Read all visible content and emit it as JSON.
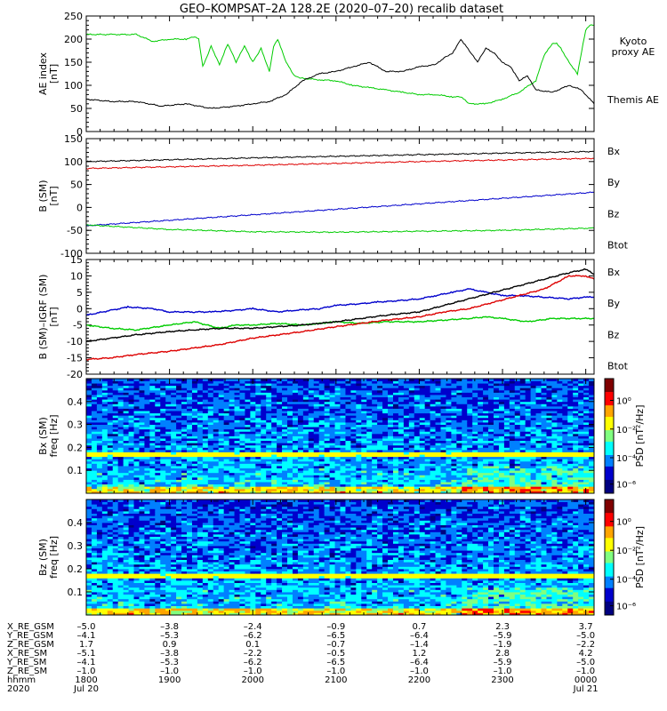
{
  "title": "GEO–KOMPSAT–2A 128.2E (2020–07–20) recalib dataset",
  "chart_data": [
    {
      "type": "line",
      "id": "ae",
      "ylabel": [
        "AE index",
        "[nT]"
      ],
      "ylim": [
        0,
        250
      ],
      "yticks": [
        0,
        50,
        100,
        150,
        200,
        250
      ],
      "xlim": [
        18.0,
        24.1
      ],
      "series": [
        {
          "name": "Kyoto proxy AE",
          "legend": [
            "Kyoto",
            "proxy AE"
          ],
          "color": "#00cc00",
          "x": [
            18.0,
            18.3,
            18.6,
            18.8,
            19.0,
            19.2,
            19.3,
            19.35,
            19.4,
            19.5,
            19.6,
            19.7,
            19.8,
            19.9,
            20.0,
            20.1,
            20.2,
            20.25,
            20.3,
            20.4,
            20.5,
            20.6,
            20.8,
            21.0,
            21.2,
            21.4,
            21.6,
            21.8,
            22.0,
            22.2,
            22.4,
            22.5,
            22.6,
            22.8,
            23.0,
            23.2,
            23.4,
            23.5,
            23.6,
            23.65,
            23.7,
            23.8,
            23.9,
            24.0,
            24.05,
            24.1
          ],
          "y": [
            210,
            210,
            210,
            195,
            200,
            200,
            205,
            200,
            140,
            185,
            145,
            190,
            150,
            185,
            150,
            180,
            130,
            185,
            200,
            150,
            120,
            115,
            112,
            110,
            100,
            95,
            90,
            85,
            80,
            80,
            75,
            75,
            60,
            60,
            70,
            85,
            110,
            165,
            190,
            190,
            180,
            150,
            125,
            220,
            230,
            230
          ]
        },
        {
          "name": "Themis AE",
          "legend": [
            "Themis AE"
          ],
          "color": "#000000",
          "x": [
            18.0,
            18.3,
            18.6,
            18.9,
            19.2,
            19.5,
            19.8,
            20.0,
            20.2,
            20.4,
            20.6,
            20.8,
            21.0,
            21.2,
            21.4,
            21.6,
            21.8,
            22.0,
            22.2,
            22.3,
            22.4,
            22.5,
            22.6,
            22.7,
            22.8,
            22.9,
            23.0,
            23.1,
            23.2,
            23.3,
            23.4,
            23.6,
            23.8,
            23.95,
            24.0,
            24.1
          ],
          "y": [
            70,
            65,
            65,
            55,
            60,
            50,
            55,
            60,
            65,
            80,
            110,
            125,
            130,
            140,
            150,
            130,
            130,
            140,
            145,
            160,
            170,
            200,
            175,
            150,
            180,
            170,
            150,
            140,
            110,
            120,
            90,
            85,
            100,
            90,
            80,
            60
          ]
        }
      ]
    },
    {
      "type": "line",
      "id": "b",
      "ylabel": [
        "B (SM)",
        "[nT]"
      ],
      "ylim": [
        -100,
        150
      ],
      "yticks": [
        -100,
        -50,
        0,
        50,
        100,
        150
      ],
      "xlim": [
        18.0,
        24.1
      ],
      "series": [
        {
          "name": "Bx",
          "color": "#0000cc",
          "x": [
            18.0,
            24.1
          ],
          "y": [
            -40,
            33
          ]
        },
        {
          "name": "By",
          "color": "#00cc00",
          "x": [
            18.0,
            19.0,
            20.0,
            21.0,
            22.0,
            23.0,
            24.1
          ],
          "y": [
            -38,
            -48,
            -53,
            -54,
            -52,
            -50,
            -45
          ]
        },
        {
          "name": "Bz",
          "color": "#dd0000",
          "x": [
            18.0,
            20.0,
            22.0,
            24.1
          ],
          "y": [
            85,
            92,
            100,
            107
          ]
        },
        {
          "name": "Btot",
          "color": "#000000",
          "x": [
            18.0,
            20.0,
            22.0,
            24.1
          ],
          "y": [
            100,
            108,
            115,
            122
          ]
        }
      ]
    },
    {
      "type": "line",
      "id": "db",
      "ylabel": [
        "B (SM)–IGRF (SM)",
        "[nT]"
      ],
      "ylim": [
        -20,
        15
      ],
      "yticks": [
        -20,
        -15,
        -10,
        -5,
        0,
        5,
        10,
        15
      ],
      "xlim": [
        18.0,
        24.1
      ],
      "series": [
        {
          "name": "Bx",
          "color": "#0000cc",
          "x": [
            18.0,
            18.3,
            18.5,
            18.8,
            19.0,
            19.3,
            19.5,
            19.8,
            20.0,
            20.3,
            20.5,
            20.8,
            21.0,
            21.3,
            21.5,
            21.8,
            22.0,
            22.2,
            22.4,
            22.6,
            22.8,
            23.0,
            23.2,
            23.5,
            23.8,
            24.0,
            24.1
          ],
          "y": [
            -2,
            -0.5,
            0.5,
            0,
            -1,
            -1,
            -1,
            -0.5,
            0,
            -1,
            -0.5,
            0,
            1,
            1.5,
            2,
            2.5,
            3,
            4,
            5,
            6,
            5,
            4,
            4,
            3.5,
            3,
            3.5,
            3.5
          ]
        },
        {
          "name": "By",
          "color": "#00cc00",
          "x": [
            18.0,
            18.3,
            18.6,
            19.0,
            19.3,
            19.6,
            19.8,
            20.0,
            20.3,
            20.6,
            21.0,
            21.3,
            21.6,
            22.0,
            22.3,
            22.6,
            22.8,
            23.0,
            23.3,
            23.6,
            23.9,
            24.1
          ],
          "y": [
            -5,
            -6,
            -6.5,
            -5,
            -4,
            -6,
            -5,
            -5,
            -4.5,
            -5,
            -4,
            -4.5,
            -4,
            -4,
            -3.5,
            -3,
            -2.5,
            -3,
            -4,
            -3,
            -3,
            -3
          ]
        },
        {
          "name": "Bz",
          "color": "#dd0000",
          "x": [
            18.0,
            18.3,
            18.6,
            19.0,
            19.3,
            19.6,
            20.0,
            20.3,
            20.6,
            21.0,
            21.3,
            21.6,
            22.0,
            22.3,
            22.6,
            22.9,
            23.2,
            23.5,
            23.8,
            24.0,
            24.1
          ],
          "y": [
            -15.5,
            -15,
            -14,
            -13,
            -12,
            -11,
            -9,
            -8,
            -7,
            -5.5,
            -4.5,
            -3.5,
            -2.5,
            -1,
            0,
            2,
            4,
            6,
            10,
            10,
            9
          ]
        },
        {
          "name": "Btot",
          "color": "#000000",
          "x": [
            18.0,
            18.3,
            18.6,
            19.0,
            19.3,
            19.6,
            20.0,
            20.3,
            20.6,
            21.0,
            21.3,
            21.6,
            22.0,
            22.3,
            22.6,
            22.9,
            23.2,
            23.5,
            23.8,
            24.0,
            24.1
          ],
          "y": [
            -10,
            -9,
            -8,
            -7,
            -6.5,
            -6,
            -6,
            -5.5,
            -5,
            -4,
            -3,
            -2,
            -1,
            1,
            3,
            5,
            7,
            9,
            11,
            12,
            10.5
          ]
        }
      ]
    },
    {
      "type": "heatmap",
      "id": "bx_spec",
      "ylabel": [
        "Bx (SM)",
        "freq [Hz]"
      ],
      "ylim": [
        0,
        0.5
      ],
      "yticks": [
        0.1,
        0.2,
        0.3,
        0.4
      ],
      "xlim": [
        18.0,
        24.1
      ],
      "colorbar": {
        "label": "PSD [nT²/Hz]",
        "ticks": [
          "10⁰",
          "10⁻²",
          "10⁻⁴",
          "10⁻⁶"
        ],
        "colors": [
          "#800000",
          "#ff0000",
          "#ffa500",
          "#ffff00",
          "#80ff80",
          "#00ffff",
          "#0080ff",
          "#0000cc",
          "#000080"
        ]
      },
      "features": [
        {
          "type": "band",
          "freq": 0.17,
          "level": "high"
        }
      ],
      "seed": 7
    },
    {
      "type": "heatmap",
      "id": "bz_spec",
      "ylabel": [
        "Bz (SM)",
        "freq [Hz]"
      ],
      "ylim": [
        0,
        0.5
      ],
      "yticks": [
        0.1,
        0.2,
        0.3,
        0.4
      ],
      "xlim": [
        18.0,
        24.1
      ],
      "colorbar": {
        "label": "PSD [nT²/Hz]",
        "ticks": [
          "10⁰",
          "10⁻²",
          "10⁻⁴",
          "10⁻⁶"
        ],
        "colors": [
          "#800000",
          "#ff0000",
          "#ffa500",
          "#ffff00",
          "#80ff80",
          "#00ffff",
          "#0080ff",
          "#0000cc",
          "#000080"
        ]
      },
      "features": [
        {
          "type": "band",
          "freq": 0.17,
          "level": "high"
        }
      ],
      "seed": 19
    }
  ],
  "ephemeris": {
    "ticks": [
      18.0,
      19.0,
      20.0,
      21.0,
      22.0,
      23.0,
      24.0
    ],
    "rows": [
      {
        "label": "X_RE_GSM",
        "values": [
          "–5.0",
          "–3.8",
          "–2.4",
          "–0.9",
          "0.7",
          "2.3",
          "3.7"
        ]
      },
      {
        "label": "Y_RE_GSM",
        "values": [
          "–4.1",
          "–5.3",
          "–6.2",
          "–6.5",
          "–6.4",
          "–5.9",
          "–5.0"
        ]
      },
      {
        "label": "Z_RE_GSM",
        "values": [
          "1.7",
          "0.9",
          "0.1",
          "–0.7",
          "–1.4",
          "–1.9",
          "–2.2"
        ]
      },
      {
        "label": "X_RE_SM",
        "values": [
          "–5.1",
          "–3.8",
          "–2.2",
          "–0.5",
          "1.2",
          "2.8",
          "4.2"
        ]
      },
      {
        "label": "Y_RE_SM",
        "values": [
          "–4.1",
          "–5.3",
          "–6.2",
          "–6.5",
          "–6.4",
          "–5.9",
          "–5.0"
        ]
      },
      {
        "label": "Z_RE_SM",
        "values": [
          "–1.0",
          "–1.0",
          "–1.0",
          "–1.0",
          "–1.0",
          "–1.0",
          "–1.0"
        ]
      },
      {
        "label": "hhmm",
        "values": [
          "1800",
          "1900",
          "2000",
          "2100",
          "2200",
          "2300",
          "0000"
        ]
      },
      {
        "label": "2020",
        "values": [
          "Jul 20",
          "",
          "",
          "",
          "",
          "",
          "Jul 21"
        ]
      }
    ]
  }
}
